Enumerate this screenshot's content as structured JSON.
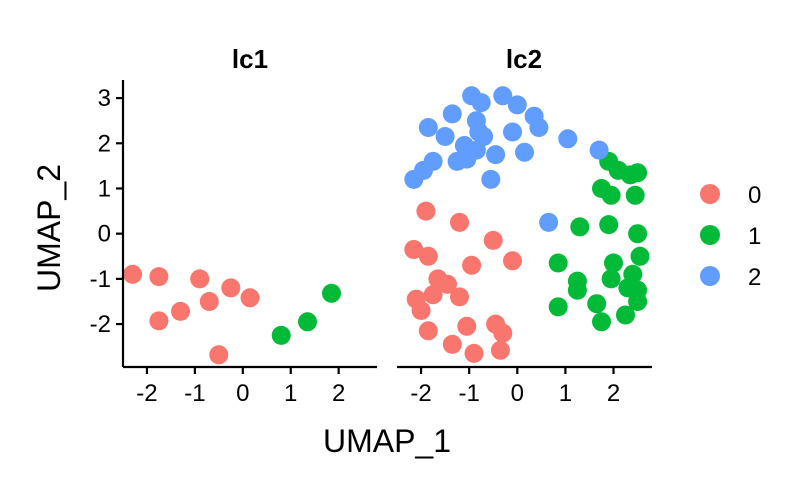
{
  "chart_data": {
    "type": "scatter",
    "xlabel": "UMAP_1",
    "ylabel": "UMAP_2",
    "xlim": [
      -2.5,
      2.8
    ],
    "ylim": [
      -2.95,
      3.4
    ],
    "x_ticks": [
      -2,
      -1,
      0,
      1,
      2
    ],
    "y_ticks": [
      -2,
      -1,
      0,
      1,
      2,
      3
    ],
    "grid": false,
    "legend_position": "right",
    "legend_entries": [
      "0",
      "1",
      "2"
    ],
    "colors": {
      "0": "#F8766D",
      "1": "#00BA38",
      "2": "#619CFF"
    },
    "facets": [
      {
        "title": "lc1",
        "points": [
          {
            "x": -2.3,
            "y": -0.9,
            "cluster": "0"
          },
          {
            "x": -1.75,
            "y": -0.95,
            "cluster": "0"
          },
          {
            "x": -0.9,
            "y": -1.0,
            "cluster": "0"
          },
          {
            "x": -0.25,
            "y": -1.2,
            "cluster": "0"
          },
          {
            "x": 0.15,
            "y": -1.42,
            "cluster": "0"
          },
          {
            "x": -0.7,
            "y": -1.5,
            "cluster": "0"
          },
          {
            "x": -1.3,
            "y": -1.72,
            "cluster": "0"
          },
          {
            "x": -1.75,
            "y": -1.93,
            "cluster": "0"
          },
          {
            "x": -0.5,
            "y": -2.68,
            "cluster": "0"
          },
          {
            "x": 0.8,
            "y": -2.25,
            "cluster": "1"
          },
          {
            "x": 1.35,
            "y": -1.95,
            "cluster": "1"
          },
          {
            "x": 1.85,
            "y": -1.32,
            "cluster": "1"
          }
        ]
      },
      {
        "title": "lc2",
        "points": [
          {
            "x": -1.9,
            "y": 0.5,
            "cluster": "0"
          },
          {
            "x": -1.2,
            "y": 0.25,
            "cluster": "0"
          },
          {
            "x": -0.5,
            "y": -0.15,
            "cluster": "0"
          },
          {
            "x": -2.15,
            "y": -0.35,
            "cluster": "0"
          },
          {
            "x": -1.85,
            "y": -0.5,
            "cluster": "0"
          },
          {
            "x": -0.1,
            "y": -0.6,
            "cluster": "0"
          },
          {
            "x": -0.95,
            "y": -0.7,
            "cluster": "0"
          },
          {
            "x": -1.65,
            "y": -1.0,
            "cluster": "0"
          },
          {
            "x": -1.45,
            "y": -1.12,
            "cluster": "0"
          },
          {
            "x": -1.75,
            "y": -1.35,
            "cluster": "0"
          },
          {
            "x": -1.2,
            "y": -1.4,
            "cluster": "0"
          },
          {
            "x": -2.1,
            "y": -1.45,
            "cluster": "0"
          },
          {
            "x": -2.0,
            "y": -1.7,
            "cluster": "0"
          },
          {
            "x": -1.85,
            "y": -2.15,
            "cluster": "0"
          },
          {
            "x": -1.05,
            "y": -2.05,
            "cluster": "0"
          },
          {
            "x": -0.45,
            "y": -2.0,
            "cluster": "0"
          },
          {
            "x": -0.3,
            "y": -2.2,
            "cluster": "0"
          },
          {
            "x": -1.35,
            "y": -2.45,
            "cluster": "0"
          },
          {
            "x": -0.9,
            "y": -2.65,
            "cluster": "0"
          },
          {
            "x": -0.35,
            "y": -2.58,
            "cluster": "0"
          },
          {
            "x": 1.9,
            "y": 1.6,
            "cluster": "1"
          },
          {
            "x": 2.1,
            "y": 1.4,
            "cluster": "1"
          },
          {
            "x": 2.35,
            "y": 1.3,
            "cluster": "1"
          },
          {
            "x": 2.5,
            "y": 1.35,
            "cluster": "1"
          },
          {
            "x": 1.75,
            "y": 1.0,
            "cluster": "1"
          },
          {
            "x": 1.95,
            "y": 0.85,
            "cluster": "1"
          },
          {
            "x": 2.45,
            "y": 0.85,
            "cluster": "1"
          },
          {
            "x": 1.3,
            "y": 0.15,
            "cluster": "1"
          },
          {
            "x": 1.9,
            "y": 0.2,
            "cluster": "1"
          },
          {
            "x": 2.5,
            "y": 0.0,
            "cluster": "1"
          },
          {
            "x": 2.55,
            "y": -0.5,
            "cluster": "1"
          },
          {
            "x": 2.0,
            "y": -0.65,
            "cluster": "1"
          },
          {
            "x": 0.85,
            "y": -0.65,
            "cluster": "1"
          },
          {
            "x": 2.4,
            "y": -0.9,
            "cluster": "1"
          },
          {
            "x": 1.25,
            "y": -1.05,
            "cluster": "1"
          },
          {
            "x": 1.95,
            "y": -1.0,
            "cluster": "1"
          },
          {
            "x": 2.3,
            "y": -1.2,
            "cluster": "1"
          },
          {
            "x": 1.25,
            "y": -1.25,
            "cluster": "1"
          },
          {
            "x": 2.5,
            "y": -1.25,
            "cluster": "1"
          },
          {
            "x": 1.65,
            "y": -1.55,
            "cluster": "1"
          },
          {
            "x": 2.5,
            "y": -1.5,
            "cluster": "1"
          },
          {
            "x": 0.85,
            "y": -1.62,
            "cluster": "1"
          },
          {
            "x": 2.25,
            "y": -1.8,
            "cluster": "1"
          },
          {
            "x": 1.75,
            "y": -1.95,
            "cluster": "1"
          },
          {
            "x": -0.95,
            "y": 3.05,
            "cluster": "2"
          },
          {
            "x": -0.3,
            "y": 3.05,
            "cluster": "2"
          },
          {
            "x": -0.75,
            "y": 2.9,
            "cluster": "2"
          },
          {
            "x": 0.0,
            "y": 2.85,
            "cluster": "2"
          },
          {
            "x": -1.35,
            "y": 2.65,
            "cluster": "2"
          },
          {
            "x": -0.85,
            "y": 2.5,
            "cluster": "2"
          },
          {
            "x": 0.35,
            "y": 2.6,
            "cluster": "2"
          },
          {
            "x": -1.85,
            "y": 2.35,
            "cluster": "2"
          },
          {
            "x": -0.8,
            "y": 2.25,
            "cluster": "2"
          },
          {
            "x": -0.1,
            "y": 2.25,
            "cluster": "2"
          },
          {
            "x": 0.45,
            "y": 2.35,
            "cluster": "2"
          },
          {
            "x": -1.5,
            "y": 2.15,
            "cluster": "2"
          },
          {
            "x": -0.7,
            "y": 2.15,
            "cluster": "2"
          },
          {
            "x": 1.05,
            "y": 2.1,
            "cluster": "2"
          },
          {
            "x": -1.1,
            "y": 1.95,
            "cluster": "2"
          },
          {
            "x": -0.85,
            "y": 1.85,
            "cluster": "2"
          },
          {
            "x": 1.7,
            "y": 1.85,
            "cluster": "2"
          },
          {
            "x": 0.15,
            "y": 1.8,
            "cluster": "2"
          },
          {
            "x": -0.45,
            "y": 1.75,
            "cluster": "2"
          },
          {
            "x": -1.25,
            "y": 1.6,
            "cluster": "2"
          },
          {
            "x": -1.05,
            "y": 1.65,
            "cluster": "2"
          },
          {
            "x": -1.75,
            "y": 1.6,
            "cluster": "2"
          },
          {
            "x": -1.95,
            "y": 1.4,
            "cluster": "2"
          },
          {
            "x": -2.15,
            "y": 1.2,
            "cluster": "2"
          },
          {
            "x": -0.55,
            "y": 1.2,
            "cluster": "2"
          },
          {
            "x": 0.65,
            "y": 0.25,
            "cluster": "2"
          }
        ]
      }
    ]
  }
}
